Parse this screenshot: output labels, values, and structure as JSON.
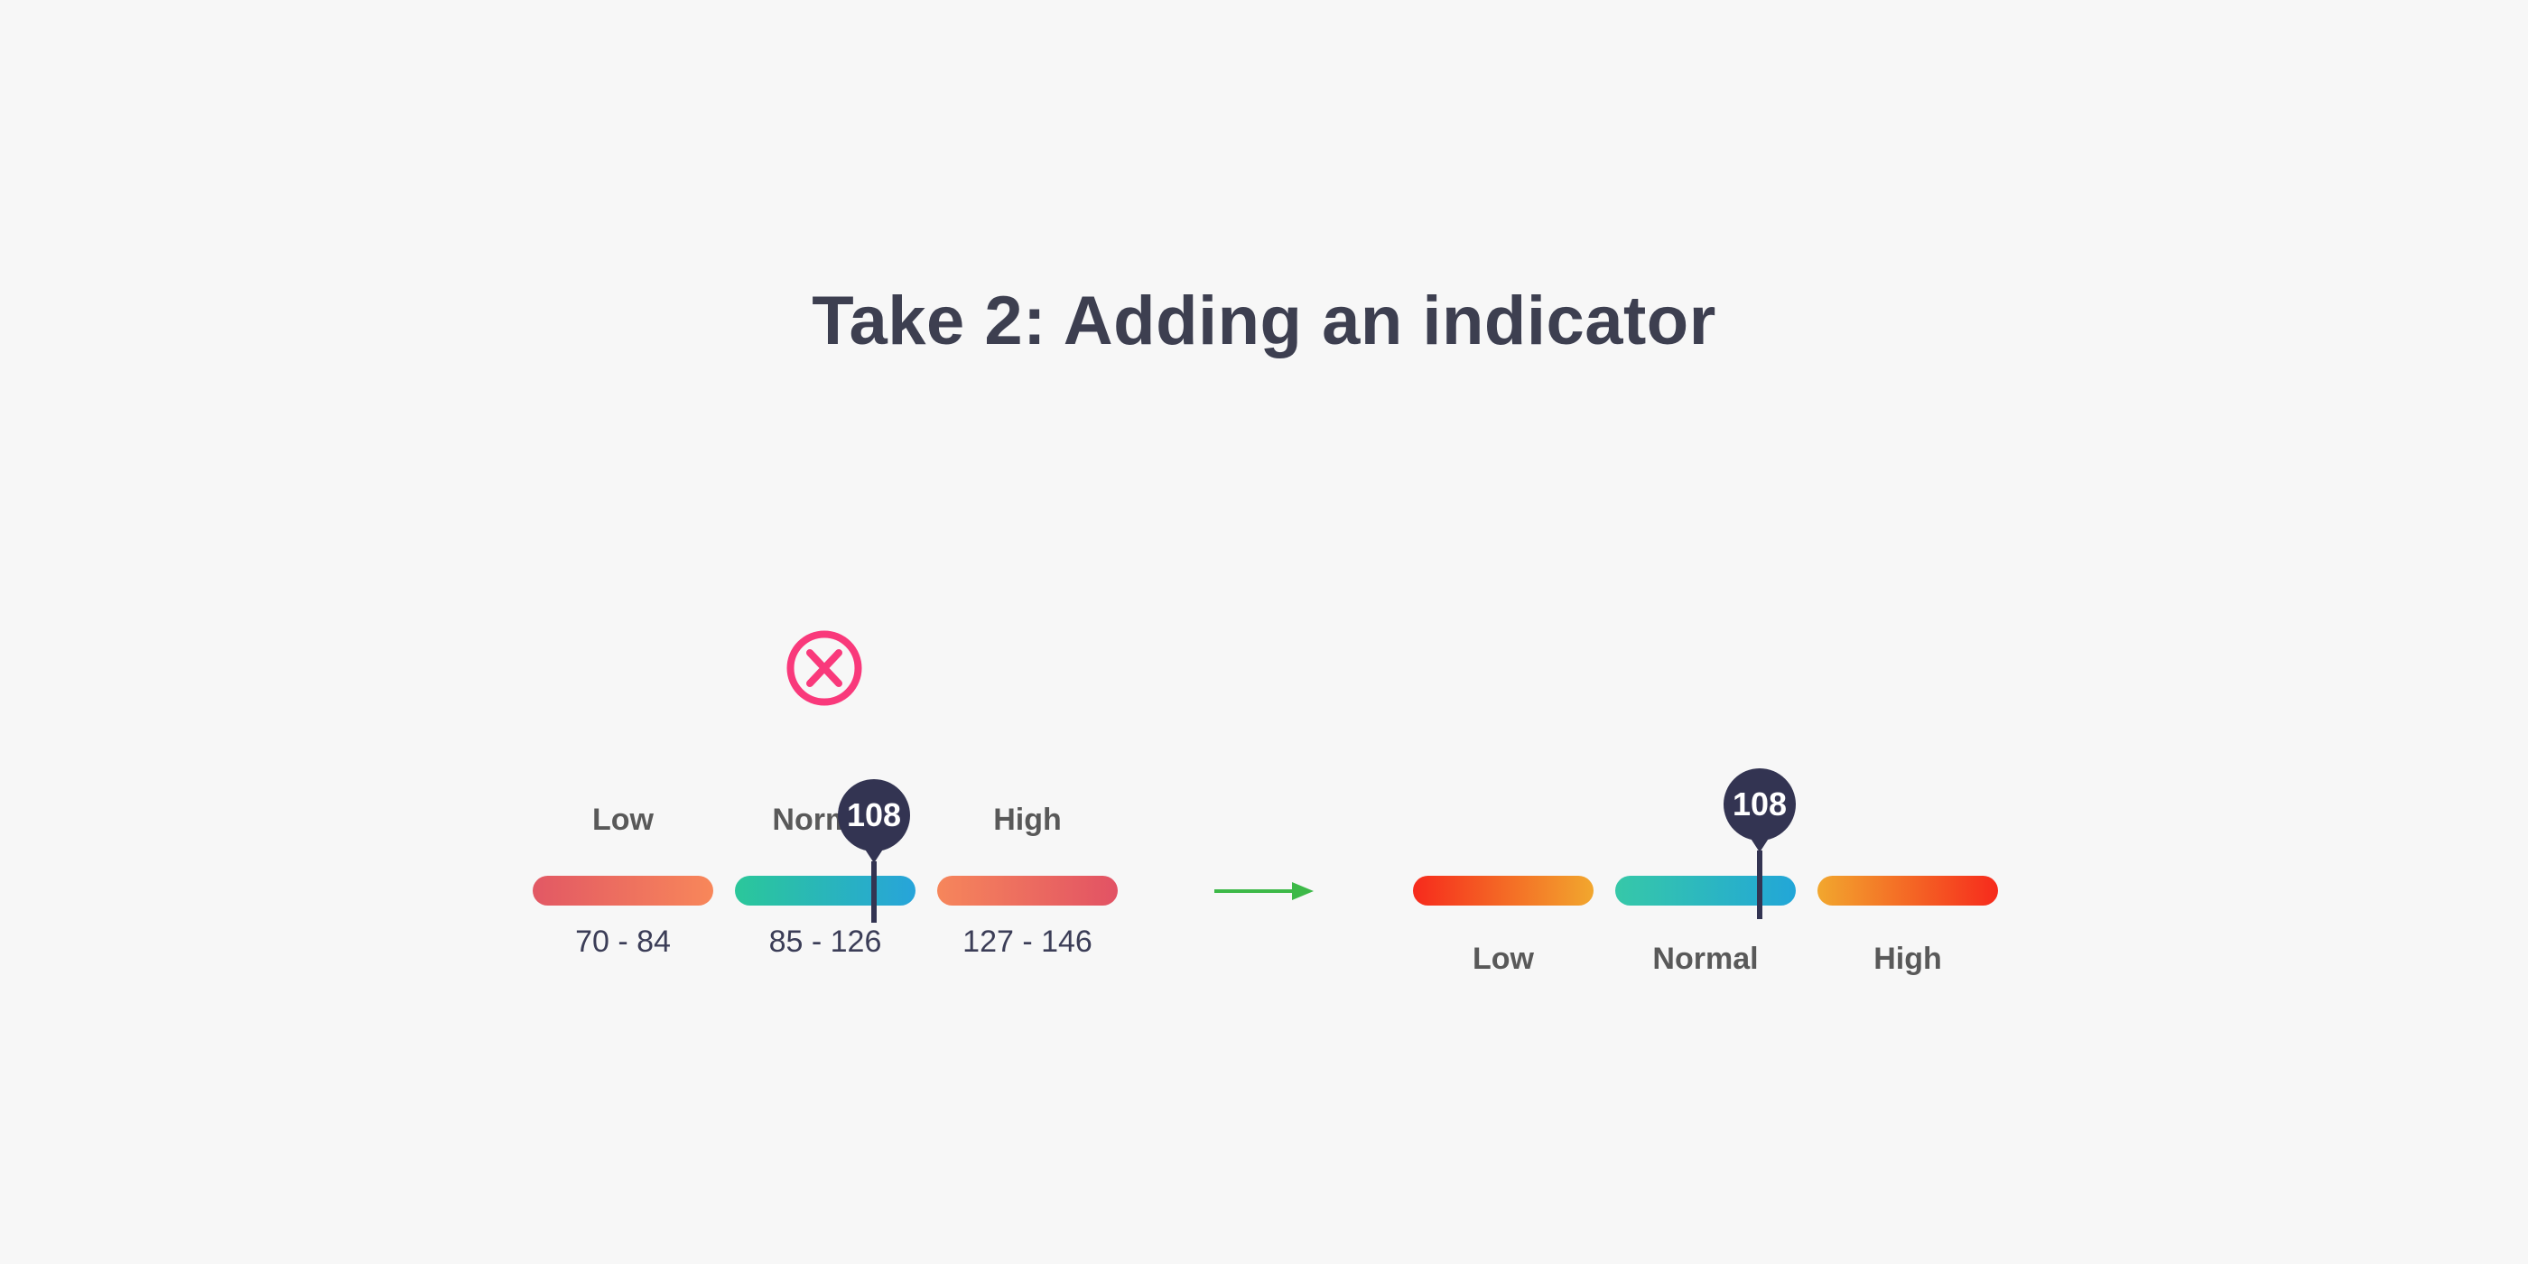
{
  "title": "Take 2: Adding an indicator",
  "before": {
    "status_icon": "rejected-cross",
    "segments": [
      {
        "label": "Low",
        "range": "70 - 84",
        "gradient": {
          "from": "#e25864",
          "to": "#f8875a"
        }
      },
      {
        "label": "Normal",
        "range": "85 - 126",
        "gradient": {
          "from": "#2bc79a",
          "to": "#27a4da"
        }
      },
      {
        "label": "High",
        "range": "127 - 146",
        "gradient": {
          "from": "#f6865b",
          "to": "#e25264"
        }
      }
    ],
    "indicator": {
      "value": "108",
      "position_pct": 77
    }
  },
  "after": {
    "segments": [
      {
        "label": "Low",
        "gradient": {
          "from": "#f62a1c",
          "to": "#f2a72e"
        }
      },
      {
        "label": "Normal",
        "gradient": {
          "from": "#36c8a8",
          "to": "#22a6d8"
        }
      },
      {
        "label": "High",
        "gradient": {
          "from": "#f2a72e",
          "to": "#f62a1c"
        }
      }
    ],
    "indicator": {
      "value": "108",
      "position_pct": 80
    }
  },
  "colors": {
    "background": "#f7f7f7",
    "title_text": "#3d3f50",
    "label_text": "#595959",
    "range_text": "#3b3d57",
    "indicator_pin": "#333452",
    "rejected_icon": "#f9397b",
    "arrow": "#3db948"
  }
}
